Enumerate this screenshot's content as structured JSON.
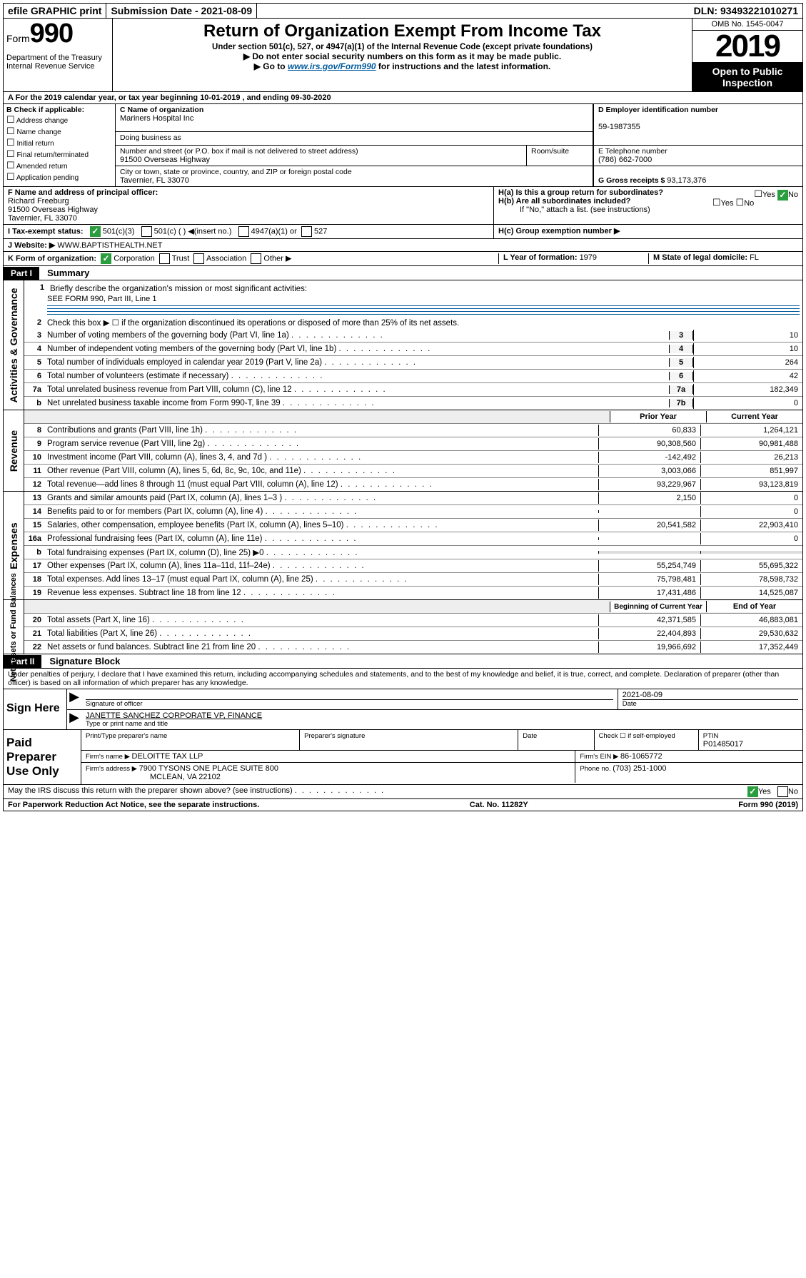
{
  "top_bar": {
    "efile": "efile GRAPHIC print",
    "submission_label": "Submission Date - ",
    "submission_date": "2021-08-09",
    "dln_label": "DLN: ",
    "dln": "93493221010271"
  },
  "header": {
    "form_prefix": "Form",
    "form_number": "990",
    "dept": "Department of the Treasury\nInternal Revenue Service",
    "title": "Return of Organization Exempt From Income Tax",
    "subtitle": "Under section 501(c), 527, or 4947(a)(1) of the Internal Revenue Code (except private foundations)",
    "note1": "▶ Do not enter social security numbers on this form as it may be made public.",
    "note2_prefix": "▶ Go to ",
    "note2_link": "www.irs.gov/Form990",
    "note2_suffix": " for instructions and the latest information.",
    "omb": "OMB No. 1545-0047",
    "year": "2019",
    "inspection": "Open to Public Inspection"
  },
  "period": {
    "line": "A For the 2019 calendar year, or tax year beginning 10-01-2019   , and ending 09-30-2020"
  },
  "section_b": {
    "hdr": "B Check if applicable:",
    "items": [
      "Address change",
      "Name change",
      "Initial return",
      "Final return/terminated",
      "Amended return",
      "Application pending"
    ]
  },
  "section_c": {
    "name_label": "C Name of organization",
    "name": "Mariners Hospital Inc",
    "dba_label": "Doing business as",
    "addr_label": "Number and street (or P.O. box if mail is not delivered to street address)",
    "room_label": "Room/suite",
    "addr": "91500 Overseas Highway",
    "city_label": "City or town, state or province, country, and ZIP or foreign postal code",
    "city": "Tavernier, FL  33070"
  },
  "section_d": {
    "ein_label": "D Employer identification number",
    "ein": "59-1987355",
    "tel_label": "E Telephone number",
    "tel": "(786) 662-7000",
    "gross_label": "G Gross receipts $ ",
    "gross": "93,173,376"
  },
  "section_f": {
    "label": "F  Name and address of principal officer:",
    "name": "Richard Freeburg",
    "addr1": "91500 Overseas Highway",
    "addr2": "Tavernier, FL  33070"
  },
  "section_h": {
    "a": "H(a)  Is this a group return for subordinates?",
    "b": "H(b)  Are all subordinates included?",
    "note": "If \"No,\" attach a list. (see instructions)",
    "c": "H(c)  Group exemption number ▶",
    "yes": "Yes",
    "no": "No"
  },
  "section_i": {
    "label": "I    Tax-exempt status:",
    "opt1": "501(c)(3)",
    "opt2": "501(c) (  ) ◀(insert no.)",
    "opt3": "4947(a)(1) or",
    "opt4": "527"
  },
  "section_j": {
    "label": "J   Website: ▶",
    "value": "  WWW.BAPTISTHEALTH.NET"
  },
  "section_k": {
    "label": "K Form of organization:",
    "opts": [
      "Corporation",
      "Trust",
      "Association",
      "Other ▶"
    ]
  },
  "section_l": {
    "label": "L Year of formation: ",
    "value": "1979"
  },
  "section_m": {
    "label": "M State of legal domicile: ",
    "value": "FL"
  },
  "part1": {
    "hdr": "Part I",
    "title": "Summary"
  },
  "governance": {
    "label": "Activities & Governance",
    "l1_num": "1",
    "l1": "Briefly describe the organization's mission or most significant activities:",
    "l1_val": "SEE FORM 990, Part III, Line 1",
    "l2_num": "2",
    "l2": "Check this box ▶ ☐  if the organization discontinued its operations or disposed of more than 25% of its net assets.",
    "rows": [
      {
        "n": "3",
        "t": "Number of voting members of the governing body (Part VI, line 1a)",
        "k": "3",
        "v": "10"
      },
      {
        "n": "4",
        "t": "Number of independent voting members of the governing body (Part VI, line 1b)",
        "k": "4",
        "v": "10"
      },
      {
        "n": "5",
        "t": "Total number of individuals employed in calendar year 2019 (Part V, line 2a)",
        "k": "5",
        "v": "264"
      },
      {
        "n": "6",
        "t": "Total number of volunteers (estimate if necessary)",
        "k": "6",
        "v": "42"
      },
      {
        "n": "7a",
        "t": "Total unrelated business revenue from Part VIII, column (C), line 12",
        "k": "7a",
        "v": "182,349"
      },
      {
        "n": "b",
        "t": "Net unrelated business taxable income from Form 990-T, line 39",
        "k": "7b",
        "v": "0"
      }
    ]
  },
  "two_col_hdr": {
    "prior": "Prior Year",
    "current": "Current Year"
  },
  "revenue": {
    "label": "Revenue",
    "rows": [
      {
        "n": "8",
        "t": "Contributions and grants (Part VIII, line 1h)",
        "p": "60,833",
        "c": "1,264,121"
      },
      {
        "n": "9",
        "t": "Program service revenue (Part VIII, line 2g)",
        "p": "90,308,560",
        "c": "90,981,488"
      },
      {
        "n": "10",
        "t": "Investment income (Part VIII, column (A), lines 3, 4, and 7d )",
        "p": "-142,492",
        "c": "26,213"
      },
      {
        "n": "11",
        "t": "Other revenue (Part VIII, column (A), lines 5, 6d, 8c, 9c, 10c, and 11e)",
        "p": "3,003,066",
        "c": "851,997"
      },
      {
        "n": "12",
        "t": "Total revenue—add lines 8 through 11 (must equal Part VIII, column (A), line 12)",
        "p": "93,229,967",
        "c": "93,123,819"
      }
    ]
  },
  "expenses": {
    "label": "Expenses",
    "rows": [
      {
        "n": "13",
        "t": "Grants and similar amounts paid (Part IX, column (A), lines 1–3 )",
        "p": "2,150",
        "c": "0"
      },
      {
        "n": "14",
        "t": "Benefits paid to or for members (Part IX, column (A), line 4)",
        "p": "",
        "c": "0"
      },
      {
        "n": "15",
        "t": "Salaries, other compensation, employee benefits (Part IX, column (A), lines 5–10)",
        "p": "20,541,582",
        "c": "22,903,410"
      },
      {
        "n": "16a",
        "t": "Professional fundraising fees (Part IX, column (A), line 11e)",
        "p": "",
        "c": "0"
      },
      {
        "n": "b",
        "t": "Total fundraising expenses (Part IX, column (D), line 25) ▶0",
        "p": "__shade__",
        "c": "__shade__"
      },
      {
        "n": "17",
        "t": "Other expenses (Part IX, column (A), lines 11a–11d, 11f–24e)",
        "p": "55,254,749",
        "c": "55,695,322"
      },
      {
        "n": "18",
        "t": "Total expenses. Add lines 13–17 (must equal Part IX, column (A), line 25)",
        "p": "75,798,481",
        "c": "78,598,732"
      },
      {
        "n": "19",
        "t": "Revenue less expenses. Subtract line 18 from line 12",
        "p": "17,431,486",
        "c": "14,525,087"
      }
    ]
  },
  "net_hdr": {
    "begin": "Beginning of Current Year",
    "end": "End of Year"
  },
  "net": {
    "label": "Net Assets or Fund Balances",
    "rows": [
      {
        "n": "20",
        "t": "Total assets (Part X, line 16)",
        "p": "42,371,585",
        "c": "46,883,081"
      },
      {
        "n": "21",
        "t": "Total liabilities (Part X, line 26)",
        "p": "22,404,893",
        "c": "29,530,632"
      },
      {
        "n": "22",
        "t": "Net assets or fund balances. Subtract line 21 from line 20",
        "p": "19,966,692",
        "c": "17,352,449"
      }
    ]
  },
  "part2": {
    "hdr": "Part II",
    "title": "Signature Block",
    "perjury": "Under penalties of perjury, I declare that I have examined this return, including accompanying schedules and statements, and to the best of my knowledge and belief, it is true, correct, and complete. Declaration of preparer (other than officer) is based on all information of which preparer has any knowledge."
  },
  "sign": {
    "label": "Sign Here",
    "sig_officer": "Signature of officer",
    "date": "2021-08-09",
    "date_label": "Date",
    "name": "JANETTE SANCHEZ  CORPORATE VP, FINANCE",
    "name_label": "Type or print name and title"
  },
  "paid": {
    "label": "Paid Preparer Use Only",
    "col1": "Print/Type preparer's name",
    "col2": "Preparer's signature",
    "col3": "Date",
    "col4": "Check ☐ if self-employed",
    "ptin_label": "PTIN",
    "ptin": "P01485017",
    "firm_name_label": "Firm's name    ▶ ",
    "firm_name": "DELOITTE TAX LLP",
    "firm_ein_label": "Firm's EIN ▶ ",
    "firm_ein": "86-1065772",
    "firm_addr_label": "Firm's address ▶ ",
    "firm_addr1": "7900 TYSONS ONE PLACE SUITE 800",
    "firm_addr2": "MCLEAN, VA  22102",
    "phone_label": "Phone no. ",
    "phone": "(703) 251-1000"
  },
  "discuss": "May the IRS discuss this return with the preparer shown above? (see instructions)",
  "footer": {
    "left": "For Paperwork Reduction Act Notice, see the separate instructions.",
    "mid": "Cat. No. 11282Y",
    "right": "Form 990 (2019)"
  }
}
